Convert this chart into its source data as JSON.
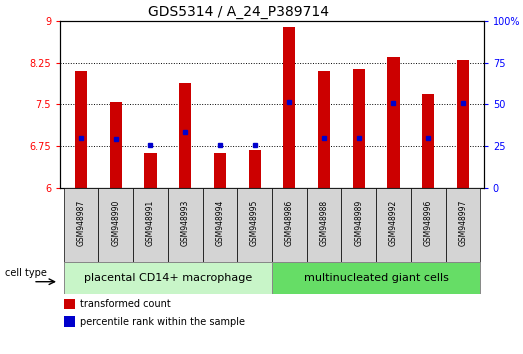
{
  "title": "GDS5314 / A_24_P389714",
  "samples": [
    "GSM948987",
    "GSM948990",
    "GSM948991",
    "GSM948993",
    "GSM948994",
    "GSM948995",
    "GSM948986",
    "GSM948988",
    "GSM948989",
    "GSM948992",
    "GSM948996",
    "GSM948997"
  ],
  "bar_values": [
    8.1,
    7.55,
    6.62,
    7.88,
    6.62,
    6.67,
    8.9,
    8.1,
    8.13,
    8.35,
    7.68,
    8.3
  ],
  "blue_dot_values": [
    6.9,
    6.88,
    6.76,
    7.0,
    6.76,
    6.77,
    7.54,
    6.9,
    6.9,
    7.52,
    6.9,
    7.52
  ],
  "bar_color": "#cc0000",
  "blue_color": "#0000cc",
  "group1_label": "placental CD14+ macrophage",
  "group2_label": "multinucleated giant cells",
  "group1_count": 6,
  "group2_count": 6,
  "group1_color": "#c8f5c8",
  "group2_color": "#66dd66",
  "cell_type_label": "cell type",
  "ylim_left": [
    6,
    9
  ],
  "ylim_right": [
    0,
    100
  ],
  "yticks_left": [
    6,
    6.75,
    7.5,
    8.25,
    9
  ],
  "yticks_right": [
    0,
    25,
    50,
    75,
    100
  ],
  "ytick_labels_left": [
    "6",
    "6.75",
    "7.5",
    "8.25",
    "9"
  ],
  "ytick_labels_right": [
    "0",
    "25",
    "50",
    "75",
    "100%"
  ],
  "bar_base": 6,
  "legend_labels": [
    "transformed count",
    "percentile rank within the sample"
  ],
  "title_fontsize": 10,
  "tick_fontsize": 7,
  "sample_fontsize": 5.5,
  "group_fontsize": 8,
  "legend_fontsize": 7,
  "bar_width": 0.35
}
